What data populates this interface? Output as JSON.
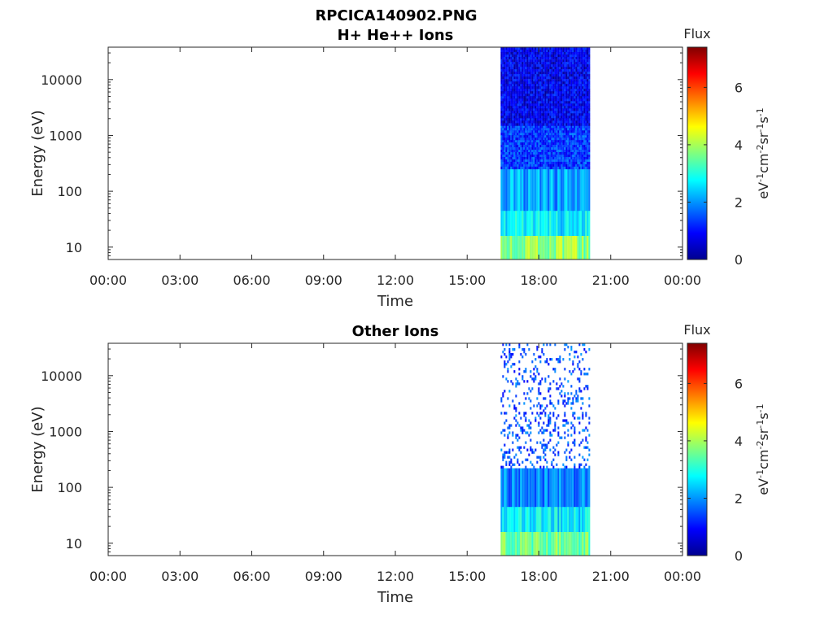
{
  "figure_title": "RPCICA140902.PNG",
  "chart_data": [
    {
      "type": "heatmap",
      "title": "H+ He++ Ions",
      "xlabel": "Time",
      "ylabel": "Energy (eV)",
      "xticks": [
        "00:00",
        "03:00",
        "06:00",
        "09:00",
        "12:00",
        "15:00",
        "18:00",
        "21:00",
        "00:00"
      ],
      "xlim_hours": [
        0,
        24
      ],
      "yscale": "log",
      "yticks": [
        10,
        100,
        1000,
        10000
      ],
      "ytick_labels": [
        "10",
        "100",
        "1000",
        "10000"
      ],
      "ylim": [
        6,
        38000
      ],
      "data_time_range_hours": [
        16.4,
        20.1
      ],
      "energy_bands": [
        {
          "emin": 6,
          "emax": 16,
          "flux": 3.8
        },
        {
          "emin": 16,
          "emax": 45,
          "flux": 2.7
        },
        {
          "emin": 45,
          "emax": 250,
          "flux": 2.1
        },
        {
          "emin": 250,
          "emax": 1500,
          "flux": 1.3
        },
        {
          "emin": 1500,
          "emax": 38000,
          "flux": 0.8
        }
      ],
      "colorbar": {
        "label": "Flux",
        "unit": "eV-1cm-2sr-1s-1",
        "ticks": [
          0,
          2,
          4,
          6
        ],
        "range": [
          0,
          7.4
        ],
        "colormap": "jet"
      }
    },
    {
      "type": "heatmap",
      "title": "Other Ions",
      "xlabel": "Time",
      "ylabel": "Energy (eV)",
      "xticks": [
        "00:00",
        "03:00",
        "06:00",
        "09:00",
        "12:00",
        "15:00",
        "18:00",
        "21:00",
        "00:00"
      ],
      "xlim_hours": [
        0,
        24
      ],
      "yscale": "log",
      "yticks": [
        10,
        100,
        1000,
        10000
      ],
      "ytick_labels": [
        "10",
        "100",
        "1000",
        "10000"
      ],
      "ylim": [
        6,
        38000
      ],
      "data_time_range_hours": [
        16.4,
        20.1
      ],
      "energy_bands": [
        {
          "emin": 6,
          "emax": 16,
          "flux": 3.6
        },
        {
          "emin": 16,
          "emax": 45,
          "flux": 2.6
        },
        {
          "emin": 45,
          "emax": 220,
          "flux": 1.9
        },
        {
          "emin": 220,
          "emax": 38000,
          "flux": 1.5
        }
      ],
      "colorbar": {
        "label": "Flux",
        "unit": "eV-1cm-2sr-1s-1",
        "ticks": [
          0,
          2,
          4,
          6
        ],
        "range": [
          0,
          7.4
        ],
        "colormap": "jet"
      }
    }
  ]
}
